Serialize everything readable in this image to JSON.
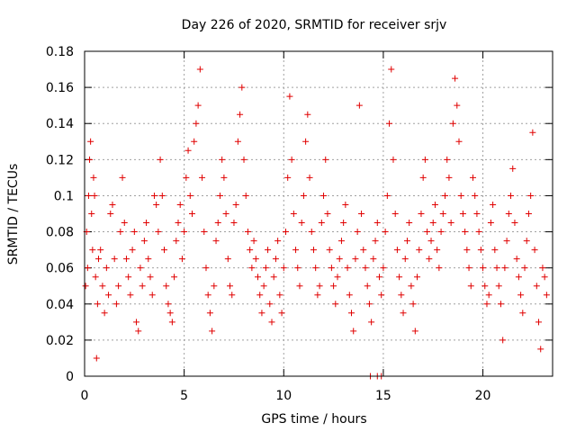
{
  "chart_data": {
    "type": "scatter",
    "title": "Day 226 of 2020, SRMTID for receiver srjv",
    "xlabel": "GPS time / hours",
    "ylabel": "SRMTID / TECUs",
    "xlim": [
      0,
      23.5
    ],
    "ylim": [
      0,
      0.18
    ],
    "xticks": [
      0,
      5,
      10,
      15,
      20
    ],
    "xtick_labels": [
      "0",
      "5",
      "10",
      "15",
      "20"
    ],
    "yticks": [
      0,
      0.02,
      0.04,
      0.06,
      0.08,
      0.1,
      0.12,
      0.14,
      0.16,
      0.18
    ],
    "ytick_labels": [
      "0",
      "0.02",
      "0.04",
      "0.06",
      "0.08",
      "0.1",
      "0.12",
      "0.14",
      "0.16",
      "0.18"
    ],
    "grid": true,
    "marker": "+",
    "color": "#e00000",
    "series": [
      {
        "name": "SRMTID",
        "points": [
          [
            0.05,
            0.05
          ],
          [
            0.1,
            0.08
          ],
          [
            0.15,
            0.06
          ],
          [
            0.2,
            0.1
          ],
          [
            0.25,
            0.12
          ],
          [
            0.3,
            0.13
          ],
          [
            0.35,
            0.09
          ],
          [
            0.4,
            0.07
          ],
          [
            0.45,
            0.11
          ],
          [
            0.5,
            0.1
          ],
          [
            0.55,
            0.055
          ],
          [
            0.6,
            0.01
          ],
          [
            0.65,
            0.04
          ],
          [
            0.7,
            0.065
          ],
          [
            0.8,
            0.07
          ],
          [
            0.9,
            0.05
          ],
          [
            1.0,
            0.035
          ],
          [
            1.1,
            0.06
          ],
          [
            1.2,
            0.045
          ],
          [
            1.3,
            0.09
          ],
          [
            1.4,
            0.095
          ],
          [
            1.5,
            0.065
          ],
          [
            1.6,
            0.04
          ],
          [
            1.7,
            0.05
          ],
          [
            1.8,
            0.08
          ],
          [
            1.9,
            0.11
          ],
          [
            2.0,
            0.085
          ],
          [
            2.1,
            0.065
          ],
          [
            2.2,
            0.055
          ],
          [
            2.3,
            0.045
          ],
          [
            2.4,
            0.07
          ],
          [
            2.5,
            0.08
          ],
          [
            2.6,
            0.03
          ],
          [
            2.7,
            0.025
          ],
          [
            2.8,
            0.06
          ],
          [
            2.9,
            0.05
          ],
          [
            3.0,
            0.075
          ],
          [
            3.1,
            0.085
          ],
          [
            3.2,
            0.065
          ],
          [
            3.3,
            0.055
          ],
          [
            3.4,
            0.045
          ],
          [
            3.5,
            0.1
          ],
          [
            3.6,
            0.095
          ],
          [
            3.7,
            0.08
          ],
          [
            3.8,
            0.12
          ],
          [
            3.9,
            0.1
          ],
          [
            4.0,
            0.07
          ],
          [
            4.1,
            0.05
          ],
          [
            4.2,
            0.04
          ],
          [
            4.3,
            0.035
          ],
          [
            4.4,
            0.03
          ],
          [
            4.5,
            0.055
          ],
          [
            4.6,
            0.075
          ],
          [
            4.7,
            0.085
          ],
          [
            4.8,
            0.095
          ],
          [
            4.9,
            0.065
          ],
          [
            5.0,
            0.08
          ],
          [
            5.1,
            0.11
          ],
          [
            5.2,
            0.125
          ],
          [
            5.3,
            0.1
          ],
          [
            5.4,
            0.09
          ],
          [
            5.5,
            0.13
          ],
          [
            5.6,
            0.14
          ],
          [
            5.7,
            0.15
          ],
          [
            5.8,
            0.17
          ],
          [
            5.9,
            0.11
          ],
          [
            6.0,
            0.08
          ],
          [
            6.1,
            0.06
          ],
          [
            6.2,
            0.045
          ],
          [
            6.3,
            0.035
          ],
          [
            6.4,
            0.025
          ],
          [
            6.5,
            0.05
          ],
          [
            6.6,
            0.075
          ],
          [
            6.7,
            0.085
          ],
          [
            6.8,
            0.1
          ],
          [
            6.9,
            0.12
          ],
          [
            7.0,
            0.11
          ],
          [
            7.1,
            0.09
          ],
          [
            7.2,
            0.065
          ],
          [
            7.3,
            0.05
          ],
          [
            7.4,
            0.045
          ],
          [
            7.5,
            0.085
          ],
          [
            7.6,
            0.095
          ],
          [
            7.7,
            0.13
          ],
          [
            7.8,
            0.145
          ],
          [
            7.9,
            0.16
          ],
          [
            8.0,
            0.12
          ],
          [
            8.1,
            0.1
          ],
          [
            8.2,
            0.08
          ],
          [
            8.3,
            0.07
          ],
          [
            8.4,
            0.06
          ],
          [
            8.5,
            0.075
          ],
          [
            8.6,
            0.065
          ],
          [
            8.7,
            0.055
          ],
          [
            8.8,
            0.045
          ],
          [
            8.9,
            0.035
          ],
          [
            9.0,
            0.05
          ],
          [
            9.1,
            0.06
          ],
          [
            9.2,
            0.07
          ],
          [
            9.3,
            0.04
          ],
          [
            9.4,
            0.03
          ],
          [
            9.5,
            0.055
          ],
          [
            9.6,
            0.065
          ],
          [
            9.7,
            0.075
          ],
          [
            9.8,
            0.045
          ],
          [
            9.9,
            0.035
          ],
          [
            10.0,
            0.06
          ],
          [
            10.1,
            0.08
          ],
          [
            10.2,
            0.11
          ],
          [
            10.3,
            0.155
          ],
          [
            10.4,
            0.12
          ],
          [
            10.5,
            0.09
          ],
          [
            10.6,
            0.07
          ],
          [
            10.7,
            0.06
          ],
          [
            10.8,
            0.05
          ],
          [
            10.9,
            0.085
          ],
          [
            11.0,
            0.1
          ],
          [
            11.1,
            0.13
          ],
          [
            11.2,
            0.145
          ],
          [
            11.3,
            0.11
          ],
          [
            11.4,
            0.08
          ],
          [
            11.5,
            0.07
          ],
          [
            11.6,
            0.06
          ],
          [
            11.7,
            0.045
          ],
          [
            11.8,
            0.05
          ],
          [
            11.9,
            0.085
          ],
          [
            12.0,
            0.1
          ],
          [
            12.1,
            0.12
          ],
          [
            12.2,
            0.09
          ],
          [
            12.3,
            0.07
          ],
          [
            12.4,
            0.06
          ],
          [
            12.5,
            0.05
          ],
          [
            12.6,
            0.04
          ],
          [
            12.7,
            0.055
          ],
          [
            12.8,
            0.065
          ],
          [
            12.9,
            0.075
          ],
          [
            13.0,
            0.085
          ],
          [
            13.1,
            0.095
          ],
          [
            13.2,
            0.06
          ],
          [
            13.3,
            0.045
          ],
          [
            13.4,
            0.035
          ],
          [
            13.5,
            0.025
          ],
          [
            13.6,
            0.065
          ],
          [
            13.7,
            0.08
          ],
          [
            13.8,
            0.15
          ],
          [
            13.9,
            0.09
          ],
          [
            14.0,
            0.07
          ],
          [
            14.1,
            0.06
          ],
          [
            14.2,
            0.05
          ],
          [
            14.3,
            0.04
          ],
          [
            14.4,
            0.03
          ],
          [
            14.5,
            0.065
          ],
          [
            14.6,
            0.075
          ],
          [
            14.7,
            0.085
          ],
          [
            14.8,
            0.055
          ],
          [
            14.9,
            0.045
          ],
          [
            15.0,
            0.06
          ],
          [
            15.1,
            0.08
          ],
          [
            15.2,
            0.1
          ],
          [
            15.3,
            0.14
          ],
          [
            15.4,
            0.17
          ],
          [
            15.5,
            0.12
          ],
          [
            15.6,
            0.09
          ],
          [
            15.7,
            0.07
          ],
          [
            15.8,
            0.055
          ],
          [
            15.9,
            0.045
          ],
          [
            16.0,
            0.035
          ],
          [
            16.1,
            0.065
          ],
          [
            16.2,
            0.075
          ],
          [
            16.3,
            0.085
          ],
          [
            16.4,
            0.05
          ],
          [
            16.5,
            0.04
          ],
          [
            16.6,
            0.025
          ],
          [
            16.7,
            0.055
          ],
          [
            16.8,
            0.07
          ],
          [
            16.9,
            0.09
          ],
          [
            17.0,
            0.11
          ],
          [
            17.1,
            0.12
          ],
          [
            17.2,
            0.08
          ],
          [
            17.3,
            0.065
          ],
          [
            17.4,
            0.075
          ],
          [
            17.5,
            0.085
          ],
          [
            17.6,
            0.095
          ],
          [
            17.7,
            0.07
          ],
          [
            17.8,
            0.06
          ],
          [
            17.9,
            0.08
          ],
          [
            18.0,
            0.09
          ],
          [
            18.1,
            0.1
          ],
          [
            18.2,
            0.12
          ],
          [
            18.3,
            0.11
          ],
          [
            18.4,
            0.085
          ],
          [
            18.5,
            0.14
          ],
          [
            18.6,
            0.165
          ],
          [
            18.7,
            0.15
          ],
          [
            18.8,
            0.13
          ],
          [
            18.9,
            0.1
          ],
          [
            19.0,
            0.09
          ],
          [
            19.1,
            0.08
          ],
          [
            19.2,
            0.07
          ],
          [
            19.3,
            0.06
          ],
          [
            19.4,
            0.05
          ],
          [
            19.5,
            0.11
          ],
          [
            19.6,
            0.1
          ],
          [
            19.7,
            0.09
          ],
          [
            19.8,
            0.08
          ],
          [
            19.9,
            0.07
          ],
          [
            20.0,
            0.06
          ],
          [
            20.1,
            0.05
          ],
          [
            20.2,
            0.04
          ],
          [
            20.3,
            0.045
          ],
          [
            20.4,
            0.085
          ],
          [
            20.5,
            0.095
          ],
          [
            20.6,
            0.07
          ],
          [
            20.7,
            0.06
          ],
          [
            20.8,
            0.05
          ],
          [
            20.9,
            0.04
          ],
          [
            21.0,
            0.02
          ],
          [
            21.1,
            0.06
          ],
          [
            21.2,
            0.075
          ],
          [
            21.3,
            0.09
          ],
          [
            21.4,
            0.1
          ],
          [
            21.5,
            0.115
          ],
          [
            21.6,
            0.085
          ],
          [
            21.7,
            0.065
          ],
          [
            21.8,
            0.055
          ],
          [
            21.9,
            0.045
          ],
          [
            22.0,
            0.035
          ],
          [
            22.1,
            0.06
          ],
          [
            22.2,
            0.075
          ],
          [
            22.3,
            0.09
          ],
          [
            22.4,
            0.1
          ],
          [
            22.5,
            0.135
          ],
          [
            22.6,
            0.07
          ],
          [
            22.7,
            0.05
          ],
          [
            22.8,
            0.03
          ],
          [
            22.9,
            0.015
          ],
          [
            23.0,
            0.06
          ],
          [
            23.1,
            0.055
          ],
          [
            23.2,
            0.045
          ],
          [
            14.35,
            0.0
          ],
          [
            14.7,
            0.0
          ],
          [
            14.9,
            0.0
          ]
        ]
      }
    ]
  }
}
